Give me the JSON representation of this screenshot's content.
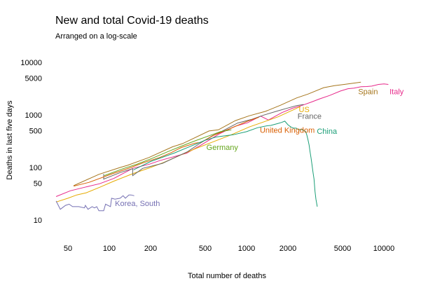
{
  "chart_data": {
    "type": "line",
    "title": "New and total Covid-19 deaths",
    "subtitle": "Arranged on a log-scale",
    "xlabel": "Total number of deaths",
    "ylabel": "Deaths in last five days",
    "x_scale": "log",
    "y_scale": "log",
    "xlim": [
      38,
      13000
    ],
    "ylim": [
      6,
      12000
    ],
    "x_ticks": [
      50,
      100,
      200,
      500,
      1000,
      2000,
      5000,
      10000
    ],
    "x_tick_labels": [
      "50",
      "100",
      "200",
      "500",
      "1000",
      "2000",
      "5000",
      "10000"
    ],
    "y_ticks": [
      10,
      50,
      100,
      500,
      1000,
      5000,
      10000
    ],
    "y_tick_labels": [
      "10",
      "50",
      "100",
      "500",
      "1000",
      "5000",
      "10000"
    ],
    "grid": false,
    "legend": "none (labels placed at line ends)",
    "series": [
      {
        "name": "Italy",
        "color": "#e7298a",
        "x": [
          41,
          52,
          66,
          85,
          108,
          148,
          197,
          233,
          366,
          463,
          631,
          827,
          1016,
          1266,
          1441,
          1809,
          2158,
          2503,
          2978,
          3405,
          4032,
          4825,
          5476,
          6077,
          6820,
          7503,
          8165,
          9134,
          10023,
          10779
        ],
        "y": [
          28,
          36,
          42,
          49,
          62,
          96,
          116,
          135,
          187,
          265,
          434,
          609,
          710,
          950,
          800,
          1105,
          1340,
          1500,
          1765,
          2020,
          2350,
          2850,
          3150,
          3240,
          3450,
          3470,
          3530,
          3800,
          3900,
          3800
        ]
      },
      {
        "name": "Spain",
        "color": "#a6761d",
        "x": [
          55,
          84,
          120,
          136,
          195,
          289,
          342,
          533,
          623,
          830,
          1043,
          1375,
          1772,
          2311,
          2808,
          3647,
          4365,
          5138,
          5982,
          6803
        ],
        "y": [
          45,
          74,
          100,
          110,
          155,
          247,
          285,
          495,
          520,
          780,
          960,
          1170,
          1530,
          2100,
          2500,
          3300,
          3600,
          3800,
          4000,
          4200
        ]
      },
      {
        "name": "US",
        "color": "#e6ab02",
        "x": [
          41,
          50,
          58,
          68,
          85,
          108,
          150,
          200,
          250,
          327,
          427,
          557,
          775,
          1046,
          1301,
          1697,
          2191,
          2467
        ],
        "y": [
          22,
          26,
          30,
          33,
          42,
          55,
          77,
          100,
          125,
          170,
          230,
          300,
          420,
          590,
          720,
          920,
          1250,
          1450
        ]
      },
      {
        "name": "France",
        "color": "#666666",
        "x": [
          91,
          91,
          120,
          148,
          148,
          175,
          244,
          372,
          450,
          562,
          674,
          860,
          1100,
          1331,
          1696,
          1995,
          2314,
          2606
        ],
        "y": [
          75,
          60,
          80,
          95,
          70,
          96,
          120,
          200,
          280,
          400,
          500,
          700,
          830,
          990,
          1200,
          1350,
          1500,
          1580
        ]
      },
      {
        "name": "United Kingdom",
        "color": "#d95f02",
        "x": [
          55,
          71,
          104,
          144,
          177,
          233,
          281,
          335,
          422,
          465,
          578,
          759,
          1019,
          1228
        ],
        "y": [
          44,
          52,
          75,
          100,
          123,
          155,
          190,
          240,
          290,
          300,
          410,
          550,
          760,
          900
        ]
      },
      {
        "name": "Germany",
        "color": "#66a61e",
        "x": [
          92,
          126,
          159,
          206,
          267,
          342,
          433,
          533,
          645,
          775
        ],
        "y": [
          70,
          95,
          115,
          150,
          200,
          260,
          330,
          400,
          480,
          520
        ]
      },
      {
        "name": "China",
        "color": "#1b9e77",
        "x": [
          150,
          200,
          300,
          400,
          500,
          600,
          800,
          1000,
          1200,
          1400,
          1500,
          1700,
          1800,
          1900,
          2000,
          2100,
          2200,
          2300,
          2400,
          2500,
          2600,
          2700,
          2750,
          2800,
          2850,
          2900,
          2950,
          3000,
          3050,
          3100,
          3150,
          3200,
          3250,
          3270
        ],
        "y": [
          90,
          130,
          190,
          260,
          330,
          380,
          420,
          480,
          570,
          620,
          630,
          690,
          720,
          760,
          650,
          590,
          560,
          560,
          520,
          530,
          510,
          480,
          410,
          340,
          270,
          200,
          150,
          110,
          80,
          60,
          35,
          25,
          20,
          18
        ]
      },
      {
        "name": "Korea, South",
        "color": "#7570b3",
        "x": [
          41,
          44,
          48,
          51,
          54,
          60,
          66,
          67,
          70,
          75,
          78,
          81,
          84,
          91,
          94,
          102,
          104,
          110,
          120,
          124,
          126,
          131,
          139,
          144,
          152
        ],
        "y": [
          23,
          16,
          19,
          20,
          18,
          18,
          17,
          19,
          16,
          18,
          17,
          18,
          15,
          15,
          20,
          18,
          26,
          25,
          26,
          28,
          29,
          26,
          30,
          30,
          29
        ]
      }
    ],
    "labels": [
      {
        "text": "Spain",
        "x": 6500,
        "y": 2800,
        "color": "#a6761d"
      },
      {
        "text": "Italy",
        "x": 11000,
        "y": 2800,
        "color": "#e7298a"
      },
      {
        "text": "US",
        "x": 2400,
        "y": 1280,
        "color": "#e6ab02"
      },
      {
        "text": "France",
        "x": 2350,
        "y": 960,
        "color": "#666666"
      },
      {
        "text": "United Kingdom",
        "x": 1250,
        "y": 520,
        "color": "#d95f02"
      },
      {
        "text": "China",
        "x": 3250,
        "y": 490,
        "color": "#1b9e77"
      },
      {
        "text": "Germany",
        "x": 510,
        "y": 245,
        "color": "#66a61e"
      },
      {
        "text": "Korea, South",
        "x": 110,
        "y": 21,
        "color": "#7570b3"
      }
    ]
  }
}
